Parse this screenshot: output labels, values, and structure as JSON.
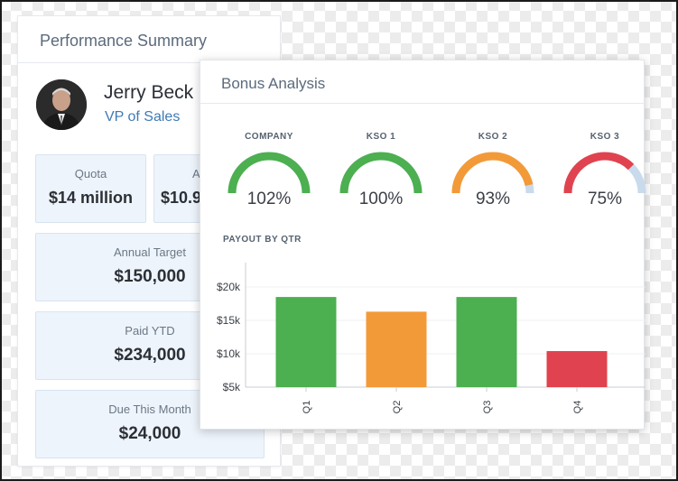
{
  "performance_summary": {
    "title": "Performance Summary",
    "user": {
      "name": "Jerry Beck",
      "role": "VP of Sales"
    },
    "stats": {
      "quota": {
        "label": "Quota",
        "value": "$14 million"
      },
      "actual": {
        "label": "A",
        "value": "$10.9"
      },
      "annual_target": {
        "label": "Annual Target",
        "value": "$150,000"
      },
      "paid_ytd": {
        "label": "Paid YTD",
        "value": "$234,000"
      },
      "due_this_month": {
        "label": "Due This Month",
        "value": "$24,000"
      }
    }
  },
  "bonus_analysis": {
    "title": "Bonus Analysis",
    "gauges": [
      {
        "label": "COMPANY",
        "value": "102%",
        "percent": 102,
        "color": "#4caf50"
      },
      {
        "label": "KSO 1",
        "value": "100%",
        "percent": 100,
        "color": "#4caf50"
      },
      {
        "label": "KSO 2",
        "value": "93%",
        "percent": 93,
        "color": "#f39a38"
      },
      {
        "label": "KSO 3",
        "value": "75%",
        "percent": 75,
        "color": "#e0434f"
      }
    ],
    "gauge_track_color": "#c9daec",
    "payout_label": "PAYOUT BY QTR"
  },
  "chart_data": {
    "type": "bar",
    "title": "",
    "categories": [
      "Q1",
      "Q2",
      "Q3",
      "Q4"
    ],
    "values": [
      18500,
      16300,
      18500,
      10400
    ],
    "colors": [
      "#4caf50",
      "#f39a38",
      "#4caf50",
      "#e0434f"
    ],
    "y_ticks": [
      "$20k",
      "$15k",
      "$10k",
      "$5k"
    ],
    "y_tick_values": [
      20000,
      15000,
      10000,
      5000
    ],
    "ylim": [
      5000,
      22000
    ],
    "grid": true
  }
}
